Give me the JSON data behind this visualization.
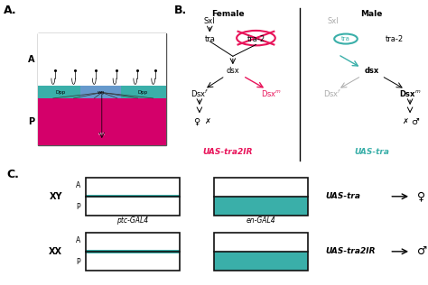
{
  "panel_A_label": "A.",
  "panel_B_label": "B.",
  "panel_C_label": "C.",
  "teal_color": "#3aafa9",
  "magenta_color": "#e8145a",
  "pink_red": "#e8145a",
  "gray_color": "#aaaaaa",
  "wg_color": "#6699cc",
  "dpp_color": "#3aafa9",
  "female_label": "Female",
  "male_label": "Male",
  "uas_tra2ir_color": "#e8145a",
  "uas_tra_color": "#3aafa9"
}
